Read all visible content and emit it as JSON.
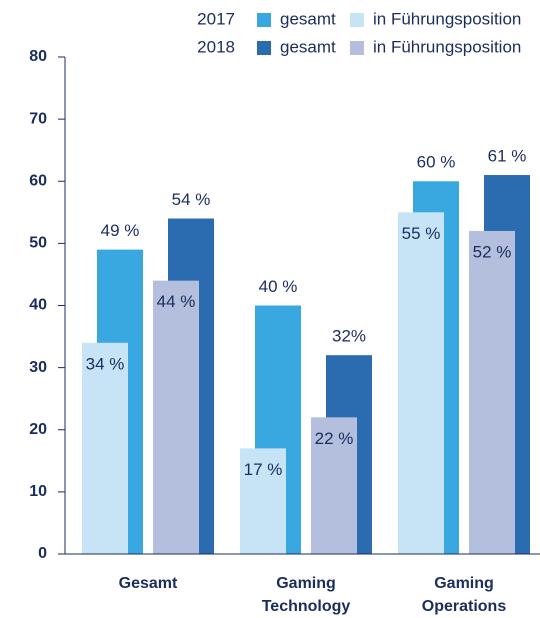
{
  "chart_data": {
    "type": "bar",
    "categories": [
      "Gesamt",
      "Gaming Technology",
      "Gaming Operations"
    ],
    "series": [
      {
        "year": "2017",
        "name": "gesamt",
        "color": "#3aa8e0",
        "values": [
          49,
          40,
          60
        ],
        "value_labels": [
          "49 %",
          "40 %",
          "60 %"
        ]
      },
      {
        "year": "2017",
        "name": "in Führungsposition",
        "color": "#c6e4f6",
        "values": [
          34,
          17,
          55
        ],
        "value_labels": [
          "34 %",
          "17 %",
          "55 %"
        ]
      },
      {
        "year": "2018",
        "name": "gesamt",
        "color": "#2b6cb0",
        "values": [
          54,
          32,
          61
        ],
        "value_labels": [
          "54 %",
          "32%",
          "61 %"
        ]
      },
      {
        "year": "2018",
        "name": "in Führungsposition",
        "color": "#b4bfde",
        "values": [
          44,
          22,
          52
        ],
        "value_labels": [
          "44 %",
          "22 %",
          "52 %"
        ]
      }
    ],
    "ylim": [
      0,
      80
    ],
    "yticks": [
      0,
      10,
      20,
      30,
      40,
      50,
      60,
      70,
      80
    ],
    "grid": false
  }
}
